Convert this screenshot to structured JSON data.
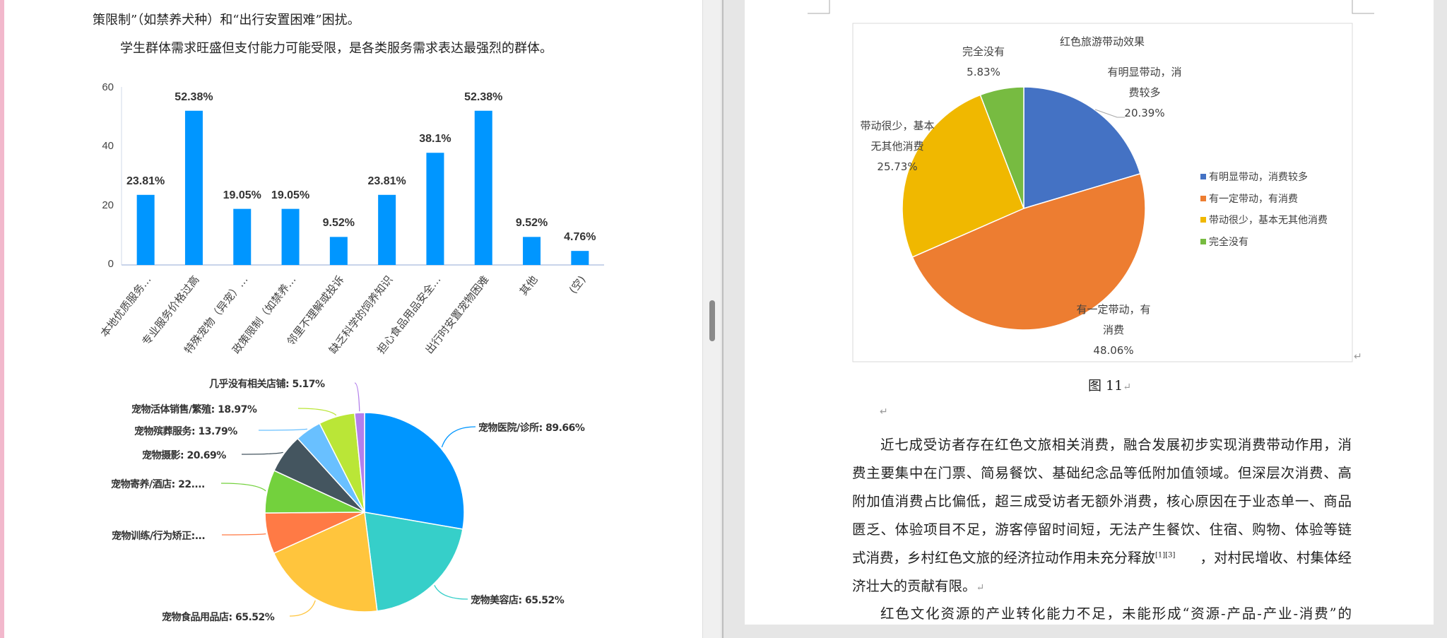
{
  "left_page": {
    "line1": "策限制”（如禁养犬种）和“出行安置困难”困扰。",
    "line2": "学生群体需求旺盛但支付能力可能受限，是各类服务需求表达最强烈的群体。"
  },
  "chart_data": [
    {
      "type": "bar",
      "categories": [
        "本地优质服务…",
        "专业服务价格过高",
        "特殊宠物（异宠）…",
        "政策限制（如禁养…",
        "邻里不理解或投诉",
        "缺乏科学的饲养知识",
        "担心食品用品安全…",
        "出行时安置宠物困难",
        "其他",
        "(空)"
      ],
      "values": [
        23.81,
        52.38,
        19.05,
        19.05,
        9.52,
        23.81,
        38.1,
        52.38,
        9.52,
        4.76
      ],
      "data_labels": [
        "23.81%",
        "52.38%",
        "19.05%",
        "19.05%",
        "9.52%",
        "23.81%",
        "38.1%",
        "52.38%",
        "9.52%",
        "4.76%"
      ],
      "yticks": [
        "0",
        "20",
        "40",
        "60"
      ],
      "ylim": [
        0,
        60
      ],
      "color": "#0096ff",
      "grid": false
    },
    {
      "type": "pie",
      "slices": [
        {
          "label": "宠物医院/诊所: 89.66%",
          "value": 89.66,
          "color": "#0096ff"
        },
        {
          "label": "宠物美容店: 65.52%",
          "value": 65.52,
          "color": "#36cfc9"
        },
        {
          "label": "宠物食品用品店: 65.52%",
          "value": 65.52,
          "color": "#ffc53d"
        },
        {
          "label": "宠物训练/行为矫正:...",
          "value": 21.5,
          "color": "#ff7a45"
        },
        {
          "label": "宠物寄养/酒店: 22....",
          "value": 22.6,
          "color": "#73d13d"
        },
        {
          "label": "宠物摄影: 20.69%",
          "value": 20.69,
          "color": "#44555f"
        },
        {
          "label": "宠物殡葬服务: 13.79%",
          "value": 13.79,
          "color": "#69c0ff"
        },
        {
          "label": "宠物活体销售/繁殖: 18.97%",
          "value": 18.97,
          "color": "#bae637"
        },
        {
          "label": "几乎没有相关店铺: 5.17%",
          "value": 5.17,
          "color": "#b37feb"
        }
      ]
    },
    {
      "type": "pie",
      "title": "红色旅游带动效果",
      "slices": [
        {
          "label": "有明显带动，消费较多",
          "value": 20.39,
          "color": "#4472c4",
          "data_label": [
            "有明显带动，消",
            "费较多",
            "20.39%"
          ]
        },
        {
          "label": "有一定带动，有消费",
          "value": 48.06,
          "color": "#ed7d31",
          "data_label": [
            "有一定带动，有",
            "消费",
            "48.06%"
          ]
        },
        {
          "label": "带动很少，基本无其他消费",
          "value": 25.73,
          "color": "#f0b800",
          "data_label": [
            "带动很少，基本",
            "无其他消费",
            "25.73%"
          ]
        },
        {
          "label": "完全没有",
          "value": 5.83,
          "color": "#77bb41",
          "data_label": [
            "完全没有",
            "5.83%"
          ]
        }
      ],
      "legend": "right"
    }
  ],
  "right_page": {
    "caption": "图 11",
    "paragraph1": [
      "近七成受访者存在红色文旅相关消费，融合发展初步实现消费带动作用，消",
      "费主要集中在门票、简易餐饮、基础纪念品等低附加值领域。但深层次消费、高",
      "附加值消费占比偏低，超三成受访者无额外消费，核心原因在于业态单一、商品",
      "匮乏、体验项目不足，游客停留时间短，无法产生餐饮、住宿、购物、体验等链",
      "式消费，乡村红色文旅的经济拉动作用未充分释放",
      "[1][3]",
      "，对村民增收、村集体经",
      "济壮大的贡献有限。"
    ],
    "paragraph2": "红色文化资源的产业转化能力不足，未能形成“资源-产品-产业-消费”的",
    "return_mark": "↵"
  }
}
